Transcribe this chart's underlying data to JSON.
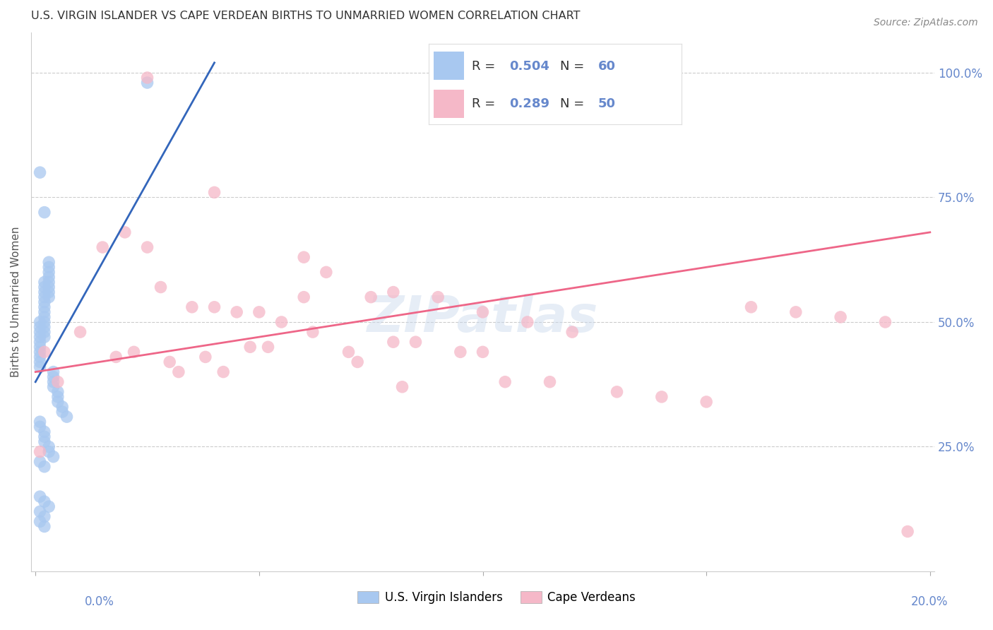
{
  "title": "U.S. VIRGIN ISLANDER VS CAPE VERDEAN BIRTHS TO UNMARRIED WOMEN CORRELATION CHART",
  "source": "Source: ZipAtlas.com",
  "ylabel": "Births to Unmarried Women",
  "color_blue": "#A8C8F0",
  "color_pink": "#F5B8C8",
  "color_blue_line": "#3366BB",
  "color_pink_line": "#EE6688",
  "color_axis": "#6688CC",
  "color_title": "#333333",
  "watermark": "ZIPatlas",
  "blue_r": "0.504",
  "blue_n": "60",
  "pink_r": "0.289",
  "pink_n": "50",
  "blue_line_x": [
    0.0,
    0.04
  ],
  "blue_line_y": [
    0.38,
    1.02
  ],
  "pink_line_x": [
    0.0,
    0.2
  ],
  "pink_line_y": [
    0.4,
    0.68
  ],
  "xlim": [
    -0.001,
    0.201
  ],
  "ylim": [
    0.0,
    1.08
  ],
  "blue_x": [
    0.001,
    0.001,
    0.001,
    0.001,
    0.001,
    0.001,
    0.001,
    0.001,
    0.001,
    0.001,
    0.002,
    0.002,
    0.002,
    0.002,
    0.002,
    0.002,
    0.002,
    0.002,
    0.002,
    0.002,
    0.002,
    0.002,
    0.003,
    0.003,
    0.003,
    0.003,
    0.003,
    0.003,
    0.003,
    0.003,
    0.004,
    0.004,
    0.004,
    0.004,
    0.005,
    0.005,
    0.005,
    0.006,
    0.006,
    0.007,
    0.001,
    0.001,
    0.002,
    0.002,
    0.002,
    0.003,
    0.003,
    0.004,
    0.001,
    0.002,
    0.001,
    0.002,
    0.003,
    0.001,
    0.002,
    0.001,
    0.002,
    0.001,
    0.002,
    0.025
  ],
  "blue_y": [
    0.5,
    0.49,
    0.48,
    0.47,
    0.46,
    0.45,
    0.44,
    0.43,
    0.42,
    0.41,
    0.58,
    0.57,
    0.56,
    0.55,
    0.54,
    0.53,
    0.52,
    0.51,
    0.5,
    0.49,
    0.48,
    0.47,
    0.62,
    0.61,
    0.6,
    0.59,
    0.58,
    0.57,
    0.56,
    0.55,
    0.4,
    0.39,
    0.38,
    0.37,
    0.36,
    0.35,
    0.34,
    0.33,
    0.32,
    0.31,
    0.3,
    0.29,
    0.28,
    0.27,
    0.26,
    0.25,
    0.24,
    0.23,
    0.22,
    0.21,
    0.15,
    0.14,
    0.13,
    0.12,
    0.11,
    0.1,
    0.09,
    0.8,
    0.72,
    0.98
  ],
  "pink_x": [
    0.001,
    0.002,
    0.005,
    0.01,
    0.015,
    0.018,
    0.02,
    0.022,
    0.025,
    0.028,
    0.03,
    0.032,
    0.035,
    0.038,
    0.04,
    0.042,
    0.045,
    0.048,
    0.05,
    0.052,
    0.055,
    0.06,
    0.062,
    0.065,
    0.07,
    0.072,
    0.075,
    0.08,
    0.082,
    0.085,
    0.09,
    0.095,
    0.1,
    0.105,
    0.11,
    0.115,
    0.12,
    0.13,
    0.14,
    0.15,
    0.16,
    0.17,
    0.18,
    0.19,
    0.195,
    0.025,
    0.04,
    0.06,
    0.08,
    0.1
  ],
  "pink_y": [
    0.24,
    0.44,
    0.38,
    0.48,
    0.65,
    0.43,
    0.68,
    0.44,
    0.65,
    0.57,
    0.42,
    0.4,
    0.53,
    0.43,
    0.53,
    0.4,
    0.52,
    0.45,
    0.52,
    0.45,
    0.5,
    0.55,
    0.48,
    0.6,
    0.44,
    0.42,
    0.55,
    0.46,
    0.37,
    0.46,
    0.55,
    0.44,
    0.52,
    0.38,
    0.5,
    0.38,
    0.48,
    0.36,
    0.35,
    0.34,
    0.53,
    0.52,
    0.51,
    0.5,
    0.08,
    0.99,
    0.76,
    0.63,
    0.56,
    0.44
  ],
  "right_yticks": [
    0.25,
    0.5,
    0.75,
    1.0
  ],
  "right_ylabels": [
    "25.0%",
    "50.0%",
    "75.0%",
    "100.0%"
  ]
}
